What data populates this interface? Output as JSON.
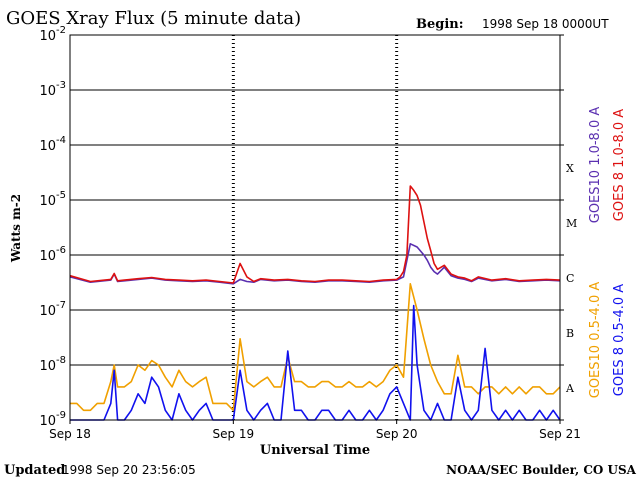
{
  "chart_data": {
    "type": "line",
    "title": "GOES Xray Flux (5 minute data)",
    "begin_label": "Begin:",
    "begin_value": "1998 Sep 18 0000UT",
    "xlabel": "Universal Time",
    "ylabel": "Watts m-2",
    "x_ticks": [
      "Sep 18",
      "Sep 19",
      "Sep 20",
      "Sep 21"
    ],
    "xlim": [
      0,
      72
    ],
    "x_units": "hours since 1998 Sep 18 0000UT",
    "y_scale": "log",
    "ylim": [
      1e-09,
      0.01
    ],
    "y_ticks": [
      {
        "mantissa": "10",
        "exp": "-2",
        "value": 0.01
      },
      {
        "mantissa": "10",
        "exp": "-3",
        "value": 0.001
      },
      {
        "mantissa": "10",
        "exp": "-4",
        "value": 0.0001
      },
      {
        "mantissa": "10",
        "exp": "-5",
        "value": 1e-05
      },
      {
        "mantissa": "10",
        "exp": "-6",
        "value": 1e-06
      },
      {
        "mantissa": "10",
        "exp": "-7",
        "value": 1e-07
      },
      {
        "mantissa": "10",
        "exp": "-8",
        "value": 1e-08
      },
      {
        "mantissa": "10",
        "exp": "-9",
        "value": 1e-09
      }
    ],
    "flare_classes": [
      {
        "label": "X",
        "value": 0.0001
      },
      {
        "label": "M",
        "value": 1e-05
      },
      {
        "label": "C",
        "value": 1e-06
      },
      {
        "label": "B",
        "value": 1e-07
      },
      {
        "label": "A",
        "value": 1e-08
      }
    ],
    "grid": true,
    "series": [
      {
        "name": "GOES10 1.0-8.0 A",
        "color": "#5a2fb0",
        "x": [
          0,
          3,
          6,
          6.5,
          7,
          8,
          10,
          12,
          14,
          16,
          18,
          20,
          22,
          24,
          25,
          26,
          27,
          28,
          30,
          32,
          34,
          36,
          38,
          40,
          42,
          44,
          46,
          48,
          49,
          50,
          51,
          52,
          52.5,
          53,
          53.5,
          54,
          55,
          56,
          57,
          58,
          59,
          60,
          62,
          64,
          66,
          68,
          70,
          72
        ],
        "y": [
          4e-07,
          3.2e-07,
          3.5e-07,
          4.5e-07,
          3.3e-07,
          3.4e-07,
          3.6e-07,
          3.8e-07,
          3.5e-07,
          3.4e-07,
          3.3e-07,
          3.4e-07,
          3.2e-07,
          3e-07,
          3.6e-07,
          3.3e-07,
          3.2e-07,
          3.6e-07,
          3.4e-07,
          3.5e-07,
          3.3e-07,
          3.2e-07,
          3.4e-07,
          3.4e-07,
          3.3e-07,
          3.2e-07,
          3.4e-07,
          3.5e-07,
          4e-07,
          1.6e-06,
          1.4e-06,
          1e-06,
          8e-07,
          6e-07,
          5e-07,
          4.5e-07,
          6e-07,
          4.2e-07,
          3.8e-07,
          3.6e-07,
          3.3e-07,
          3.8e-07,
          3.4e-07,
          3.6e-07,
          3.3e-07,
          3.4e-07,
          3.5e-07,
          3.4e-07
        ]
      },
      {
        "name": "GOES 8 1.0-8.0 A",
        "color": "#dd1111",
        "x": [
          0,
          3,
          6,
          6.5,
          7,
          8,
          10,
          12,
          14,
          16,
          18,
          20,
          22,
          24,
          25,
          26,
          27,
          28,
          30,
          32,
          34,
          36,
          38,
          40,
          42,
          44,
          46,
          48,
          48.5,
          49,
          49.5,
          50,
          50.5,
          51,
          51.5,
          52,
          52.5,
          53,
          53.5,
          54,
          55,
          56,
          57,
          58,
          59,
          60,
          62,
          64,
          66,
          68,
          70,
          72
        ],
        "y": [
          4.2e-07,
          3.3e-07,
          3.6e-07,
          4.6e-07,
          3.4e-07,
          3.5e-07,
          3.7e-07,
          3.9e-07,
          3.6e-07,
          3.5e-07,
          3.4e-07,
          3.5e-07,
          3.3e-07,
          3.1e-07,
          7e-07,
          4e-07,
          3.3e-07,
          3.7e-07,
          3.5e-07,
          3.6e-07,
          3.4e-07,
          3.3e-07,
          3.5e-07,
          3.5e-07,
          3.4e-07,
          3.3e-07,
          3.5e-07,
          3.6e-07,
          4e-07,
          5e-07,
          1e-06,
          1.8e-05,
          1.5e-05,
          1.2e-05,
          8e-06,
          4e-06,
          2e-06,
          1.2e-06,
          7e-07,
          5.5e-07,
          6.5e-07,
          4.5e-07,
          4e-07,
          3.8e-07,
          3.4e-07,
          4e-07,
          3.5e-07,
          3.7e-07,
          3.4e-07,
          3.5e-07,
          3.6e-07,
          3.5e-07
        ]
      },
      {
        "name": "GOES10 0.5-4.0 A",
        "color": "#f0a000",
        "x": [
          0,
          1,
          2,
          3,
          4,
          5,
          6,
          6.5,
          7,
          8,
          9,
          10,
          11,
          12,
          13,
          14,
          15,
          16,
          17,
          18,
          19,
          20,
          21,
          22,
          23,
          24,
          25,
          26,
          27,
          28,
          29,
          30,
          31,
          32,
          33,
          34,
          35,
          36,
          37,
          38,
          39,
          40,
          41,
          42,
          43,
          44,
          45,
          46,
          47,
          48,
          49,
          50,
          51,
          52,
          53,
          54,
          55,
          56,
          57,
          58,
          59,
          60,
          61,
          62,
          63,
          64,
          65,
          66,
          67,
          68,
          69,
          70,
          71,
          72
        ],
        "y": [
          2e-09,
          2e-09,
          1.5e-09,
          1.5e-09,
          2e-09,
          2e-09,
          5e-09,
          1e-08,
          4e-09,
          4e-09,
          5e-09,
          1e-08,
          8e-09,
          1.2e-08,
          1e-08,
          6e-09,
          4e-09,
          8e-09,
          5e-09,
          4e-09,
          5e-09,
          6e-09,
          2e-09,
          2e-09,
          2e-09,
          1.5e-09,
          3e-08,
          5e-09,
          4e-09,
          5e-09,
          6e-09,
          4e-09,
          4e-09,
          1.4e-08,
          5e-09,
          5e-09,
          4e-09,
          4e-09,
          5e-09,
          5e-09,
          4e-09,
          4e-09,
          5e-09,
          4e-09,
          4e-09,
          5e-09,
          4e-09,
          5e-09,
          8e-09,
          1e-08,
          6e-09,
          3e-07,
          1e-07,
          3e-08,
          1e-08,
          5e-09,
          3e-09,
          3e-09,
          1.5e-08,
          4e-09,
          4e-09,
          3e-09,
          4e-09,
          4e-09,
          3e-09,
          4e-09,
          3e-09,
          4e-09,
          3e-09,
          4e-09,
          4e-09,
          3e-09,
          3e-09,
          4e-09
        ]
      },
      {
        "name": "GOES 8 0.5-4.0 A",
        "color": "#1111ee",
        "x": [
          0,
          1,
          2,
          3,
          4,
          5,
          6,
          6.5,
          7,
          8,
          9,
          10,
          11,
          12,
          13,
          14,
          15,
          16,
          17,
          18,
          19,
          20,
          21,
          22,
          23,
          24,
          25,
          26,
          27,
          28,
          29,
          30,
          31,
          32,
          33,
          34,
          35,
          36,
          37,
          38,
          39,
          40,
          41,
          42,
          43,
          44,
          45,
          46,
          47,
          48,
          49,
          50,
          50.5,
          51,
          52,
          53,
          54,
          55,
          56,
          57,
          58,
          59,
          60,
          61,
          62,
          63,
          64,
          65,
          66,
          67,
          68,
          69,
          70,
          71,
          72
        ],
        "y": [
          1e-09,
          1e-09,
          1e-09,
          1e-09,
          1e-09,
          1e-09,
          2e-09,
          8e-09,
          1e-09,
          1e-09,
          1.5e-09,
          3e-09,
          2e-09,
          6e-09,
          4e-09,
          1.5e-09,
          1e-09,
          3e-09,
          1.5e-09,
          1e-09,
          1.5e-09,
          2e-09,
          1e-09,
          1e-09,
          1e-09,
          1e-09,
          8e-09,
          1.5e-09,
          1e-09,
          1.5e-09,
          2e-09,
          1e-09,
          1e-09,
          1.8e-08,
          1.5e-09,
          1.5e-09,
          1e-09,
          1e-09,
          1.5e-09,
          1.5e-09,
          1e-09,
          1e-09,
          1.5e-09,
          1e-09,
          1e-09,
          1.5e-09,
          1e-09,
          1.5e-09,
          3e-09,
          4e-09,
          2e-09,
          1e-09,
          1.2e-07,
          1e-08,
          1.5e-09,
          1e-09,
          2e-09,
          1e-09,
          1e-09,
          6e-09,
          1.5e-09,
          1e-09,
          1.5e-09,
          2e-08,
          1.5e-09,
          1e-09,
          1.5e-09,
          1e-09,
          1.5e-09,
          1e-09,
          1e-09,
          1.5e-09,
          1e-09,
          1.5e-09,
          1e-09
        ]
      }
    ]
  },
  "footer": {
    "updated_label": "Updated",
    "updated_value": "1998 Sep 20 23:56:05",
    "credit": "NOAA/SEC Boulder, CO USA"
  }
}
